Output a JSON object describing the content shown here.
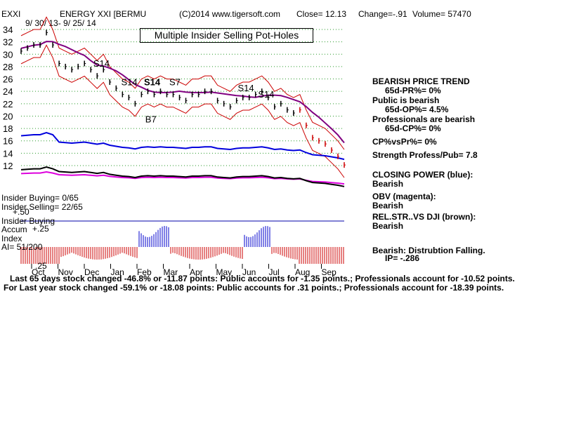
{
  "header": {
    "symbol": "EXXI",
    "name": "ENERGY XXI [BERMU",
    "copyright": "(C)2014 www.tigersoft.com",
    "close": "Close=  12.13",
    "change": "Change=-.91",
    "volume": "Volume= 57470",
    "date_range": "9/ 30/ 13- 9/ 25/ 14"
  },
  "box_title": "Multiple Insider Selling Pot-Holes",
  "chart_data": {
    "type": "line",
    "x_labels": [
      "Oct",
      "Nov",
      "Dec",
      "Jan",
      "Feb",
      "Mar",
      "Apr",
      "May",
      "Jun",
      "Jul",
      "Aug",
      "Sep"
    ],
    "y_ticks": [
      "34",
      "32",
      "30",
      "28",
      "26",
      "24",
      "22",
      "20",
      "18",
      "16",
      "14",
      "12"
    ],
    "ylim": [
      12,
      34
    ],
    "grid": true,
    "price": {
      "name": "Close",
      "x": [
        0,
        5,
        10,
        15,
        20,
        25,
        30,
        35,
        40,
        45,
        50,
        55,
        60,
        65,
        70,
        75,
        80,
        85,
        90,
        95,
        100,
        105,
        110,
        115,
        120,
        125,
        130,
        135,
        140,
        145,
        150,
        155,
        160,
        165,
        170,
        175,
        180,
        185,
        190,
        195,
        200,
        205,
        210,
        215,
        220,
        225,
        230,
        235,
        240,
        245,
        250,
        255
      ],
      "y": [
        30.5,
        31,
        31.5,
        31.5,
        33.5,
        31.5,
        28.5,
        28,
        27.5,
        28,
        28.5,
        27.5,
        26.5,
        27.5,
        25.5,
        24.5,
        23.5,
        23,
        22,
        23.5,
        24,
        23.5,
        24,
        23.5,
        23.5,
        23,
        22.5,
        23.5,
        23.5,
        24,
        24,
        22.5,
        22,
        21.5,
        22.5,
        23,
        23,
        23.5,
        24,
        23,
        21.5,
        22,
        21,
        20.5,
        21,
        18.5,
        16.5,
        16,
        15.5,
        14.5,
        13.5,
        12.1
      ]
    },
    "signals": [
      {
        "label": "S14",
        "x": 57,
        "y": 28
      },
      {
        "label": "S14",
        "x": 79,
        "y": 25
      },
      {
        "label": "S14",
        "x": 97,
        "y": 25
      },
      {
        "label": "S7",
        "x": 117,
        "y": 25
      },
      {
        "label": "B7",
        "x": 98,
        "y": 19
      },
      {
        "label": "S14",
        "x": 171,
        "y": 24
      },
      {
        "label": "S14",
        "x": 187,
        "y": 23
      }
    ],
    "indicators": [
      "Closing Power (blue)",
      "OBV (magenta)",
      "Rel.Str. vs DJI (brown)"
    ],
    "insider_accum_scale": {
      "top": "+.50",
      "mid": "+.25",
      "bottom": ".25"
    }
  },
  "left_panel": {
    "insider_buying": "Insider Buying= 0/65",
    "insider_selling": "Insider Selling= 22/65",
    "insider_buying_label": "Insider Buying",
    "accum_label": "Accum",
    "index_label": "Index",
    "ai_value": "AI= 51/200"
  },
  "right_panel": {
    "trend_title": "BEARISH PRICE TREND",
    "pr": "65d-PR%= 0%",
    "public_title": "Public is bearish",
    "op": "65d-OP%= 4.5%",
    "pros_title": "Professionals are bearish",
    "cp": "65d-CP%= 0%",
    "cp_vs_pr": "CP%vsPr%=  0%",
    "strength": "Strength Profess/Pub= 7.8",
    "closing_power_title": "CLOSING POWER (blue):",
    "closing_power_value": "Bearish",
    "obv_title": "OBV (magenta):",
    "obv_value": "Bearish",
    "relstr_title": "REL.STR..VS DJI (brown):",
    "relstr_value": "Bearish",
    "ip_title": "Bearish: Distrubtion Falling.",
    "ip_value": "IP= -.286"
  },
  "footer": {
    "line1_prefix": "Last 65 days stock changed -46.8% or -11.87 points:  Public accounts for  -1.35 points.;  Professionals account for -10.52 points.",
    "line2": "For Last year stock changed -59.1% or -18.08 points:  Public accounts for  .31 points.;  Professionals account for -18.39 points."
  }
}
